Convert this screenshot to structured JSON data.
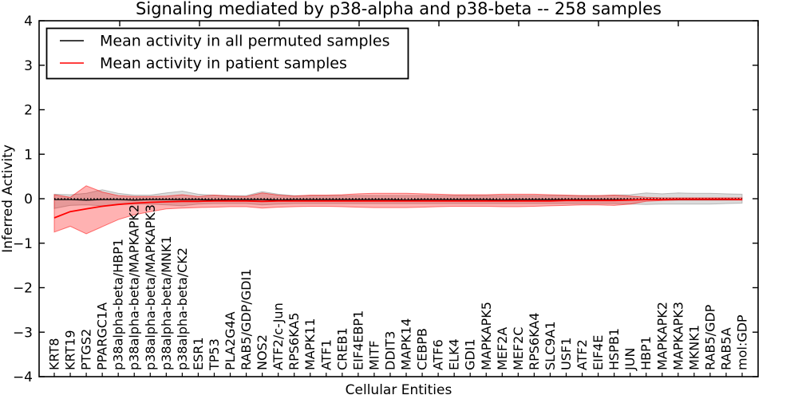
{
  "title": "Signaling mediated by p38-alpha and p38-beta -- 258 samples",
  "axes": {
    "xlabel": "Cellular Entities",
    "ylabel": "Inferred Activity",
    "ylim": [
      -4,
      4
    ],
    "yticks": [
      -4,
      -3,
      -2,
      -1,
      0,
      1,
      2,
      3,
      4
    ]
  },
  "legend": {
    "position": "upper left",
    "entries": [
      {
        "label": "Mean activity in all permuted samples",
        "color": "#000000"
      },
      {
        "label": "Mean activity in patient samples",
        "color": "#ff0000"
      }
    ]
  },
  "colors": {
    "patient_line": "#ff0000",
    "permuted_line": "#000000",
    "patient_band_fill": "rgba(255,0,0,0.30)",
    "patient_band_edge": "rgba(255,0,0,0.50)",
    "permuted_band_fill": "rgba(0,0,0,0.14)",
    "permuted_band_edge": "rgba(0,0,0,0.22)",
    "zero_line": "#000000",
    "spine": "#000000",
    "background": "#ffffff"
  },
  "chart_data": {
    "type": "line",
    "title": "Signaling mediated by p38-alpha and p38-beta -- 258 samples",
    "xlabel": "Cellular Entities",
    "ylabel": "Inferred Activity",
    "ylim": [
      -4,
      4
    ],
    "yticks": [
      -4,
      -3,
      -2,
      -1,
      0,
      1,
      2,
      3,
      4
    ],
    "grid": false,
    "legend_position": "upper left",
    "x_tick_label_rotation": 90,
    "categories": [
      "KRT8",
      "KRT19",
      "PTGS2",
      "PPARGC1A",
      "p38alpha-beta/HBP1",
      "p38alpha-beta/MAPKAPK2",
      "p38alpha-beta/MAPKAPK3",
      "p38alpha-beta/MNK1",
      "p38alpha-beta/CK2",
      "ESR1",
      "TP53",
      "PLA2G4A",
      "RAB5/GDP/GDI1",
      "NOS2",
      "ATF2/c-Jun",
      "RPS6KA5",
      "MAPK11",
      "ATF1",
      "CREB1",
      "EIF4EBP1",
      "MITF",
      "DDIT3",
      "MAPK14",
      "CEBPB",
      "ATF6",
      "ELK4",
      "GDI1",
      "MAPKAPK5",
      "MEF2A",
      "MEF2C",
      "RPS6KA4",
      "SLC9A1",
      "USF1",
      "ATF2",
      "EIF4E",
      "HSPB1",
      "JUN",
      "HBP1",
      "MAPKAPK2",
      "MAPKAPK3",
      "MKNK1",
      "RAB5/GDP",
      "RAB5A",
      "mol:GDP"
    ],
    "zero_line": {
      "value": 0,
      "style": "dotted",
      "color": "#000000"
    },
    "series": [
      {
        "name": "Mean activity in all permuted samples",
        "color": "#000000",
        "style": "solid",
        "width": 1.3,
        "values": [
          -0.02,
          -0.02,
          -0.03,
          -0.02,
          -0.02,
          -0.03,
          -0.02,
          -0.02,
          -0.02,
          -0.02,
          -0.03,
          -0.02,
          -0.02,
          -0.02,
          -0.03,
          -0.02,
          -0.02,
          -0.02,
          -0.02,
          -0.02,
          -0.02,
          -0.02,
          -0.03,
          -0.02,
          -0.02,
          -0.02,
          -0.02,
          -0.02,
          -0.03,
          -0.02,
          -0.02,
          -0.02,
          -0.02,
          -0.02,
          -0.02,
          -0.02,
          -0.02,
          -0.02,
          -0.02,
          -0.02,
          -0.02,
          -0.02,
          -0.02,
          -0.02
        ]
      },
      {
        "name": "Mean activity in patient samples",
        "color": "#ff0000",
        "style": "solid",
        "width": 1.8,
        "values": [
          -0.43,
          -0.29,
          -0.23,
          -0.17,
          -0.13,
          -0.1,
          -0.08,
          -0.07,
          -0.06,
          -0.06,
          -0.05,
          -0.05,
          -0.05,
          -0.06,
          -0.05,
          -0.05,
          -0.05,
          -0.05,
          -0.05,
          -0.05,
          -0.05,
          -0.05,
          -0.05,
          -0.05,
          -0.05,
          -0.05,
          -0.05,
          -0.05,
          -0.05,
          -0.05,
          -0.05,
          -0.05,
          -0.04,
          -0.04,
          -0.04,
          -0.04,
          -0.03,
          -0.02,
          -0.02,
          -0.01,
          -0.01,
          -0.01,
          -0.01,
          -0.02
        ]
      }
    ],
    "bands": [
      {
        "name": "permuted-samples-range",
        "fill": "rgba(0,0,0,0.14)",
        "edge": "rgba(0,0,0,0.22)",
        "upper": [
          0.1,
          0.09,
          0.12,
          0.2,
          0.12,
          0.08,
          0.08,
          0.13,
          0.17,
          0.1,
          0.08,
          0.07,
          0.07,
          0.16,
          0.1,
          0.07,
          0.07,
          0.07,
          0.07,
          0.07,
          0.07,
          0.07,
          0.07,
          0.07,
          0.07,
          0.07,
          0.07,
          0.07,
          0.07,
          0.07,
          0.07,
          0.07,
          0.07,
          0.07,
          0.07,
          0.08,
          0.09,
          0.13,
          0.11,
          0.13,
          0.12,
          0.12,
          0.11,
          0.1
        ],
        "lower": [
          -0.22,
          -0.15,
          -0.14,
          -0.16,
          -0.13,
          -0.12,
          -0.12,
          -0.14,
          -0.16,
          -0.12,
          -0.11,
          -0.11,
          -0.11,
          -0.14,
          -0.12,
          -0.11,
          -0.11,
          -0.11,
          -0.11,
          -0.11,
          -0.11,
          -0.11,
          -0.11,
          -0.11,
          -0.11,
          -0.11,
          -0.11,
          -0.11,
          -0.11,
          -0.11,
          -0.11,
          -0.11,
          -0.11,
          -0.11,
          -0.11,
          -0.11,
          -0.12,
          -0.13,
          -0.12,
          -0.12,
          -0.12,
          -0.12,
          -0.11,
          -0.1
        ]
      },
      {
        "name": "patient-samples-range",
        "fill": "rgba(255,0,0,0.30)",
        "edge": "rgba(255,0,0,0.50)",
        "upper": [
          0.09,
          0.03,
          0.29,
          0.15,
          0.07,
          0.05,
          0.05,
          0.06,
          0.09,
          0.05,
          0.08,
          0.06,
          0.05,
          0.13,
          0.08,
          0.06,
          0.08,
          0.08,
          0.09,
          0.11,
          0.12,
          0.12,
          0.12,
          0.11,
          0.1,
          0.09,
          0.09,
          0.09,
          0.1,
          0.1,
          0.1,
          0.09,
          0.08,
          0.07,
          0.07,
          0.08,
          0.06,
          0.03,
          0.02,
          0.02,
          0.02,
          0.02,
          0.02,
          0.02
        ],
        "lower": [
          -0.75,
          -0.62,
          -0.79,
          -0.63,
          -0.47,
          -0.36,
          -0.29,
          -0.23,
          -0.21,
          -0.2,
          -0.19,
          -0.18,
          -0.18,
          -0.21,
          -0.19,
          -0.18,
          -0.17,
          -0.17,
          -0.18,
          -0.19,
          -0.2,
          -0.2,
          -0.2,
          -0.19,
          -0.18,
          -0.17,
          -0.17,
          -0.17,
          -0.18,
          -0.18,
          -0.17,
          -0.16,
          -0.15,
          -0.14,
          -0.14,
          -0.15,
          -0.12,
          -0.06,
          -0.04,
          -0.03,
          -0.03,
          -0.03,
          -0.03,
          -0.03
        ]
      }
    ]
  }
}
